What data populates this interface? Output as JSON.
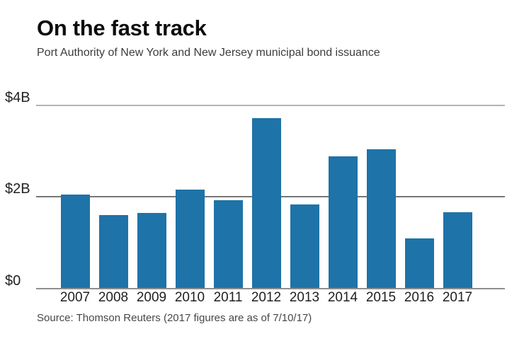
{
  "header": {
    "title": "On the fast track",
    "subtitle": "Port Authority of New York and New Jersey municipal bond issuance"
  },
  "chart_data": {
    "type": "bar",
    "title": "On the fast track",
    "subtitle": "Port Authority of New York and New Jersey municipal bond issuance",
    "categories": [
      "2007",
      "2008",
      "2009",
      "2010",
      "2011",
      "2012",
      "2013",
      "2014",
      "2015",
      "2016",
      "2017"
    ],
    "values": [
      2.04,
      1.6,
      1.64,
      2.15,
      1.92,
      3.72,
      1.83,
      2.88,
      3.04,
      1.09,
      1.66
    ],
    "unit": "billions of dollars",
    "xlabel": "",
    "ylabel": "",
    "ylim": [
      0,
      4
    ],
    "yticks": [
      {
        "value": 0,
        "label": "$0"
      },
      {
        "value": 2,
        "label": "$2B"
      },
      {
        "value": 4,
        "label": "$4B"
      }
    ],
    "grid": true,
    "legend": "none",
    "bar_color": "#1e73a8"
  },
  "source": "Source: Thomson Reuters (2017 figures are as of 7/10/17)",
  "colors": {
    "bar": "#1e73a8",
    "gridline_top": "#b3b3b3",
    "gridline_mid": "#777777",
    "baseline": "#8f8f8f",
    "title_text": "#0d0d0d",
    "muted_text": "#474747"
  }
}
